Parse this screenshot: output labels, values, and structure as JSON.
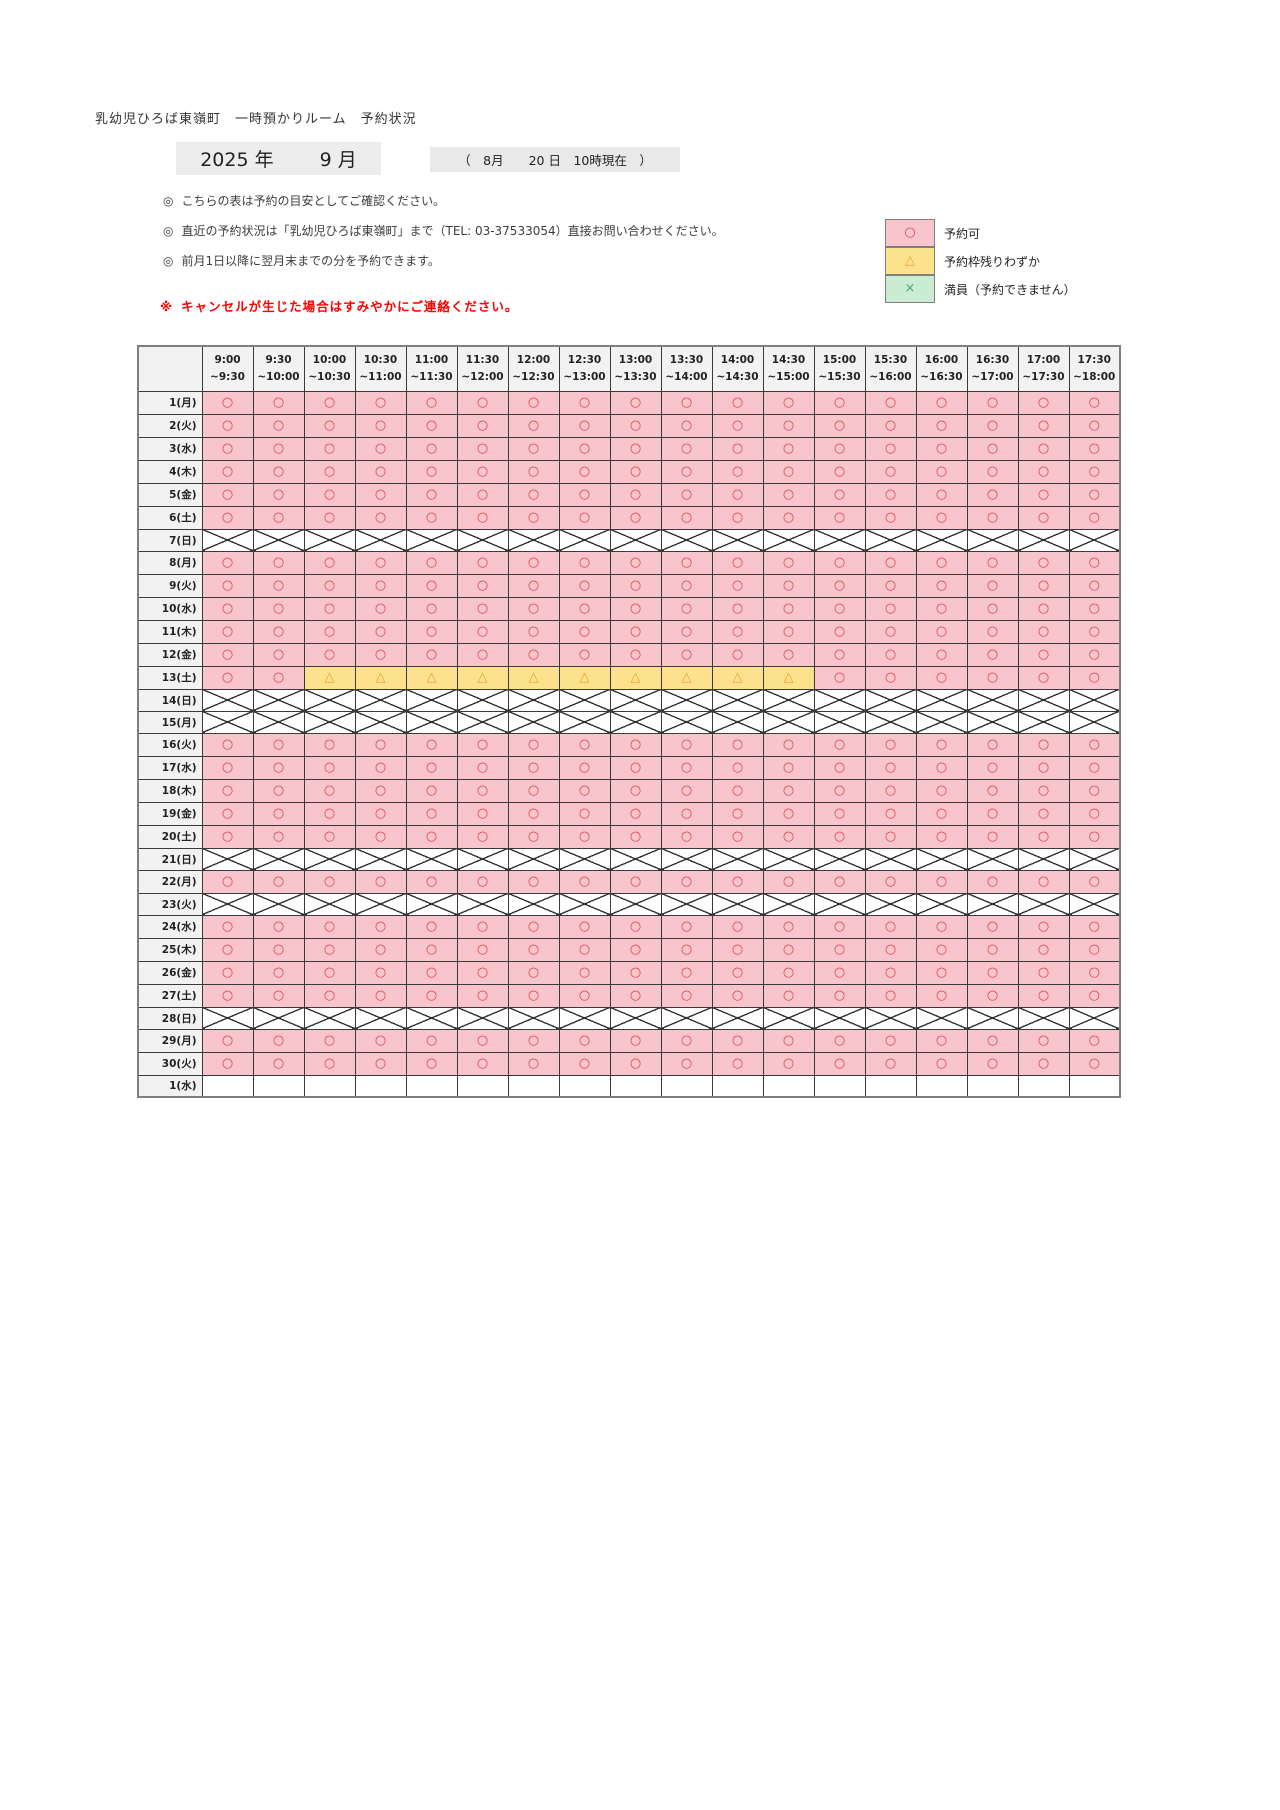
{
  "page": {
    "title": "乳幼児ひろば東嶺町　一時預かりルーム　予約状況"
  },
  "period": {
    "year": "2025",
    "year_label": "年",
    "month": "9",
    "month_label": "月"
  },
  "as_of": "（　8月　　20 日　10時現在　）",
  "notes": [
    {
      "marker": "◎",
      "text": "こちらの表は予約の目安としてご確認ください。"
    },
    {
      "marker": "◎",
      "text": "直近の予約状況は「乳幼児ひろば東嶺町」まで（TEL: 03-37533054）直接お問い合わせください。"
    },
    {
      "marker": "◎",
      "text": "前月1日以降に翌月末までの分を予約できます。"
    }
  ],
  "warning": {
    "marker": "※",
    "text": "キャンセルが生じた場合はすみやかにご連絡ください。"
  },
  "legend": {
    "items": [
      {
        "symbol": "○",
        "label": "予約可",
        "bg": "#f7c5cb",
        "symbol_color": "#e0434e",
        "code": "open"
      },
      {
        "symbol": "△",
        "label": "予約枠残りわずか",
        "bg": "#fce28c",
        "symbol_color": "#e8a33d",
        "code": "few"
      },
      {
        "symbol": "×",
        "label": "満員（予約できません）",
        "bg": "#c9ecd2",
        "symbol_color": "#4aa96c",
        "code": "full"
      }
    ]
  },
  "schedule": {
    "symbols": {
      "o": "○",
      "t": "△"
    },
    "status_colors": {
      "open_bg": "#f7c5cb",
      "few_bg": "#fce28c",
      "closed_bg": "#ffffff"
    },
    "time_slots": [
      [
        "9:00",
        "~9:30"
      ],
      [
        "9:30",
        "~10:00"
      ],
      [
        "10:00",
        "~10:30"
      ],
      [
        "10:30",
        "~11:00"
      ],
      [
        "11:00",
        "~11:30"
      ],
      [
        "11:30",
        "~12:00"
      ],
      [
        "12:00",
        "~12:30"
      ],
      [
        "12:30",
        "~13:00"
      ],
      [
        "13:00",
        "~13:30"
      ],
      [
        "13:30",
        "~14:00"
      ],
      [
        "14:00",
        "~14:30"
      ],
      [
        "14:30",
        "~15:00"
      ],
      [
        "15:00",
        "~15:30"
      ],
      [
        "15:30",
        "~16:00"
      ],
      [
        "16:00",
        "~16:30"
      ],
      [
        "16:30",
        "~17:00"
      ],
      [
        "17:00",
        "~17:30"
      ],
      [
        "17:30",
        "~18:00"
      ]
    ],
    "rows": [
      {
        "label": "1(月)",
        "cells": "oooooooooooooooooo"
      },
      {
        "label": "2(火)",
        "cells": "oooooooooooooooooo"
      },
      {
        "label": "3(水)",
        "cells": "oooooooooooooooooo"
      },
      {
        "label": "4(木)",
        "cells": "oooooooooooooooooo"
      },
      {
        "label": "5(金)",
        "cells": "oooooooooooooooooo"
      },
      {
        "label": "6(土)",
        "cells": "oooooooooooooooooo"
      },
      {
        "label": "7(日)",
        "cells": "xxxxxxxxxxxxxxxxxx"
      },
      {
        "label": "8(月)",
        "cells": "oooooooooooooooooo"
      },
      {
        "label": "9(火)",
        "cells": "oooooooooooooooooo"
      },
      {
        "label": "10(水)",
        "cells": "oooooooooooooooooo"
      },
      {
        "label": "11(木)",
        "cells": "oooooooooooooooooo"
      },
      {
        "label": "12(金)",
        "cells": "oooooooooooooooooo"
      },
      {
        "label": "13(土)",
        "cells": "oottttttttttoooooo"
      },
      {
        "label": "14(日)",
        "cells": "xxxxxxxxxxxxxxxxxx"
      },
      {
        "label": "15(月)",
        "cells": "xxxxxxxxxxxxxxxxxx"
      },
      {
        "label": "16(火)",
        "cells": "oooooooooooooooooo"
      },
      {
        "label": "17(水)",
        "cells": "oooooooooooooooooo"
      },
      {
        "label": "18(木)",
        "cells": "oooooooooooooooooo"
      },
      {
        "label": "19(金)",
        "cells": "oooooooooooooooooo"
      },
      {
        "label": "20(土)",
        "cells": "oooooooooooooooooo"
      },
      {
        "label": "21(日)",
        "cells": "xxxxxxxxxxxxxxxxxx"
      },
      {
        "label": "22(月)",
        "cells": "oooooooooooooooooo"
      },
      {
        "label": "23(火)",
        "cells": "xxxxxxxxxxxxxxxxxx"
      },
      {
        "label": "24(水)",
        "cells": "oooooooooooooooooo"
      },
      {
        "label": "25(木)",
        "cells": "oooooooooooooooooo"
      },
      {
        "label": "26(金)",
        "cells": "oooooooooooooooooo"
      },
      {
        "label": "27(土)",
        "cells": "oooooooooooooooooo"
      },
      {
        "label": "28(日)",
        "cells": "xxxxxxxxxxxxxxxxxx"
      },
      {
        "label": "29(月)",
        "cells": "oooooooooooooooooo"
      },
      {
        "label": "30(火)",
        "cells": "oooooooooooooooooo"
      },
      {
        "label": "1(水)",
        "cells": "eeeeeeeeeeeeeeeeee"
      }
    ]
  }
}
